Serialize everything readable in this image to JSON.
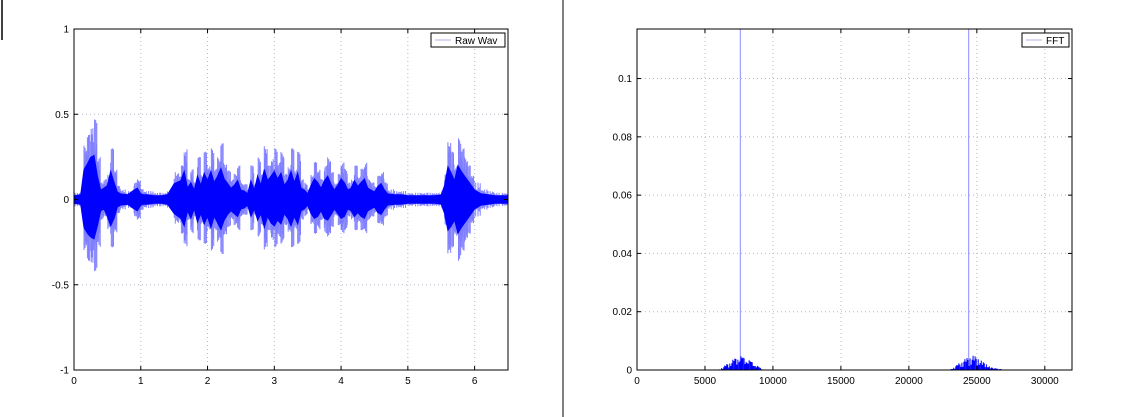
{
  "window": {
    "colors": {
      "background": "#ffffff",
      "pane_divider": "#808080",
      "grid": "#b8b8c8",
      "raw_wav_series": "#0000ff",
      "fft_series": "#0000ff",
      "legend_swatch": "#b0b0e0"
    }
  },
  "chart_data": [
    {
      "type": "area",
      "title": "",
      "xlabel": "",
      "ylabel": "",
      "xlim": [
        0,
        6.5
      ],
      "ylim": [
        -1,
        1
      ],
      "xticks": [
        0,
        1,
        2,
        3,
        4,
        5,
        6
      ],
      "yticks": [
        -1,
        -0.5,
        0,
        0.5,
        1
      ],
      "x_tick_labels": [
        "0",
        "1",
        "2",
        "3",
        "4",
        "5",
        "6"
      ],
      "y_tick_labels": [
        "-1",
        "-0.5",
        "0",
        "0.5",
        "1"
      ],
      "grid": true,
      "legend": "top-right",
      "series": [
        {
          "name": "Raw Wav",
          "description": "audio waveform envelope (max/min amplitude vs time)",
          "x": [
            0,
            0.1,
            0.15,
            0.2,
            0.25,
            0.3,
            0.35,
            0.4,
            0.45,
            0.5,
            0.55,
            0.6,
            0.65,
            0.7,
            0.8,
            0.9,
            0.95,
            1.0,
            1.05,
            1.1,
            1.2,
            1.3,
            1.4,
            1.5,
            1.6,
            1.65,
            1.7,
            1.75,
            1.8,
            1.85,
            1.9,
            1.95,
            2.0,
            2.05,
            2.1,
            2.15,
            2.2,
            2.25,
            2.3,
            2.35,
            2.4,
            2.45,
            2.5,
            2.55,
            2.6,
            2.65,
            2.7,
            2.75,
            2.8,
            2.85,
            2.9,
            2.95,
            3.0,
            3.05,
            3.1,
            3.15,
            3.2,
            3.25,
            3.3,
            3.35,
            3.4,
            3.45,
            3.5,
            3.55,
            3.6,
            3.65,
            3.7,
            3.75,
            3.8,
            3.85,
            3.9,
            3.95,
            4.0,
            4.05,
            4.1,
            4.15,
            4.2,
            4.25,
            4.3,
            4.35,
            4.4,
            4.45,
            4.5,
            4.55,
            4.6,
            4.65,
            4.7,
            4.8,
            4.9,
            5.0,
            5.1,
            5.2,
            5.3,
            5.4,
            5.5,
            5.55,
            5.6,
            5.65,
            5.7,
            5.75,
            5.8,
            5.85,
            5.9,
            5.95,
            6.0,
            6.1,
            6.2,
            6.3,
            6.4,
            6.5
          ],
          "upper": [
            0.04,
            0.05,
            0.32,
            0.38,
            0.45,
            0.47,
            0.25,
            0.1,
            0.12,
            0.15,
            0.3,
            0.18,
            0.08,
            0.06,
            0.05,
            0.1,
            0.12,
            0.06,
            0.05,
            0.05,
            0.04,
            0.04,
            0.05,
            0.17,
            0.2,
            0.3,
            0.12,
            0.18,
            0.1,
            0.25,
            0.15,
            0.28,
            0.2,
            0.3,
            0.18,
            0.25,
            0.33,
            0.22,
            0.17,
            0.12,
            0.15,
            0.2,
            0.1,
            0.09,
            0.06,
            0.2,
            0.1,
            0.25,
            0.15,
            0.32,
            0.2,
            0.25,
            0.3,
            0.22,
            0.28,
            0.15,
            0.2,
            0.3,
            0.18,
            0.28,
            0.12,
            0.1,
            0.06,
            0.15,
            0.22,
            0.18,
            0.12,
            0.2,
            0.25,
            0.16,
            0.1,
            0.15,
            0.22,
            0.18,
            0.1,
            0.12,
            0.2,
            0.14,
            0.18,
            0.22,
            0.12,
            0.1,
            0.08,
            0.14,
            0.17,
            0.1,
            0.06,
            0.05,
            0.05,
            0.04,
            0.04,
            0.04,
            0.04,
            0.04,
            0.05,
            0.15,
            0.35,
            0.28,
            0.2,
            0.36,
            0.3,
            0.25,
            0.2,
            0.15,
            0.1,
            0.06,
            0.05,
            0.04,
            0.04,
            0.04
          ],
          "lower": [
            -0.04,
            -0.05,
            -0.3,
            -0.36,
            -0.4,
            -0.42,
            -0.28,
            -0.12,
            -0.1,
            -0.18,
            -0.28,
            -0.2,
            -0.08,
            -0.06,
            -0.05,
            -0.1,
            -0.12,
            -0.06,
            -0.05,
            -0.05,
            -0.04,
            -0.04,
            -0.05,
            -0.15,
            -0.2,
            -0.28,
            -0.12,
            -0.2,
            -0.1,
            -0.24,
            -0.15,
            -0.26,
            -0.18,
            -0.3,
            -0.18,
            -0.25,
            -0.32,
            -0.22,
            -0.16,
            -0.12,
            -0.15,
            -0.18,
            -0.1,
            -0.09,
            -0.06,
            -0.18,
            -0.1,
            -0.22,
            -0.15,
            -0.3,
            -0.18,
            -0.25,
            -0.28,
            -0.22,
            -0.26,
            -0.15,
            -0.2,
            -0.28,
            -0.18,
            -0.26,
            -0.12,
            -0.1,
            -0.06,
            -0.15,
            -0.2,
            -0.18,
            -0.12,
            -0.2,
            -0.22,
            -0.16,
            -0.1,
            -0.15,
            -0.2,
            -0.18,
            -0.1,
            -0.12,
            -0.18,
            -0.14,
            -0.18,
            -0.2,
            -0.12,
            -0.1,
            -0.08,
            -0.14,
            -0.16,
            -0.1,
            -0.06,
            -0.05,
            -0.05,
            -0.04,
            -0.04,
            -0.04,
            -0.04,
            -0.04,
            -0.05,
            -0.15,
            -0.33,
            -0.28,
            -0.22,
            -0.36,
            -0.3,
            -0.25,
            -0.2,
            -0.15,
            -0.1,
            -0.06,
            -0.05,
            -0.04,
            -0.04,
            -0.04
          ]
        }
      ]
    },
    {
      "type": "area",
      "title": "",
      "xlabel": "",
      "ylabel": "",
      "xlim": [
        0,
        32000
      ],
      "ylim": [
        0,
        0.117
      ],
      "xticks": [
        0,
        5000,
        10000,
        15000,
        20000,
        25000,
        30000
      ],
      "yticks": [
        0,
        0.02,
        0.04,
        0.06,
        0.08,
        0.1
      ],
      "x_tick_labels": [
        "0",
        "5000",
        "10000",
        "15000",
        "20000",
        "25000",
        "30000"
      ],
      "y_tick_labels": [
        "0",
        "0.02",
        "0.04",
        "0.06",
        "0.08",
        "0.1"
      ],
      "grid": true,
      "legend": "top-right",
      "series": [
        {
          "name": "FFT",
          "description": "magnitude spectrum with two symmetric humps and two tall spikes",
          "x": [
            0,
            6000,
            6300,
            6600,
            6900,
            7200,
            7500,
            7800,
            8100,
            8400,
            8700,
            9000,
            9300,
            23000,
            23300,
            23600,
            23900,
            24200,
            24500,
            24800,
            25100,
            25400,
            25700,
            26000,
            26500,
            27000,
            32000
          ],
          "y": [
            0.0,
            0.0,
            0.001,
            0.002,
            0.003,
            0.004,
            0.005,
            0.0045,
            0.004,
            0.003,
            0.002,
            0.001,
            0.0,
            0.0,
            0.001,
            0.002,
            0.003,
            0.004,
            0.0045,
            0.005,
            0.004,
            0.003,
            0.002,
            0.001,
            0.0005,
            0.0002,
            0.0
          ],
          "peaks": [
            {
              "x": 7600,
              "y": 0.117
            },
            {
              "x": 24400,
              "y": 0.117
            }
          ]
        }
      ]
    }
  ]
}
